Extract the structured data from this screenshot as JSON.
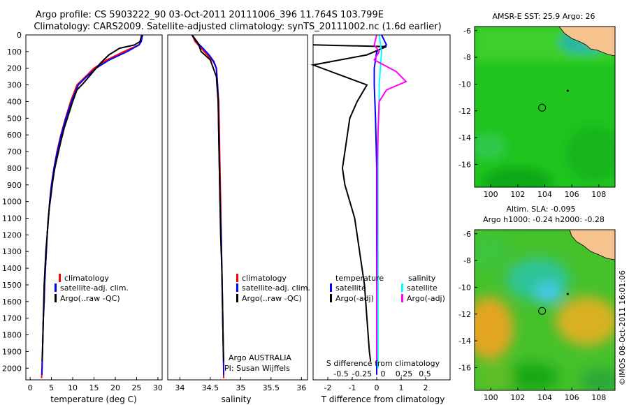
{
  "title": {
    "line1": "Argo profile: CS 5903222_90 03-Oct-2011 20111006_396 11.764S 103.799E",
    "line2": "Climatology: CARS2009. Satellite-adjusted climatology: synTS_20111002.nc (1.6d earlier)"
  },
  "chart_data": [
    {
      "id": "temperature",
      "type": "line",
      "xlabel": "temperature (deg C)",
      "xlim": [
        -1,
        31
      ],
      "ylim": [
        2070,
        0
      ],
      "xticks": [
        0,
        5,
        10,
        15,
        20,
        25,
        30
      ],
      "yticks": [
        0,
        100,
        200,
        300,
        400,
        500,
        600,
        700,
        800,
        900,
        1000,
        1100,
        1200,
        1300,
        1400,
        1500,
        1600,
        1700,
        1800,
        1900,
        2000
      ],
      "legend": [
        "climatology",
        "satellite-adj. clim.",
        "Argo(..raw -QC)"
      ],
      "legend_position": "lower-center",
      "series": [
        {
          "name": "climatology",
          "color": "#ff0000",
          "points": [
            [
              26.3,
              0
            ],
            [
              26.0,
              40
            ],
            [
              25.5,
              60
            ],
            [
              22.0,
              100
            ],
            [
              18.0,
              150
            ],
            [
              15.0,
              200
            ],
            [
              13.0,
              250
            ],
            [
              11.0,
              300
            ],
            [
              9.5,
              400
            ],
            [
              8.3,
              500
            ],
            [
              7.2,
              600
            ],
            [
              6.3,
              700
            ],
            [
              5.6,
              800
            ],
            [
              5.0,
              900
            ],
            [
              4.6,
              1000
            ],
            [
              4.3,
              1100
            ],
            [
              4.0,
              1200
            ],
            [
              3.8,
              1300
            ],
            [
              3.6,
              1400
            ],
            [
              3.4,
              1500
            ],
            [
              3.3,
              1600
            ],
            [
              3.1,
              1700
            ],
            [
              3.0,
              1800
            ],
            [
              2.9,
              1900
            ],
            [
              2.8,
              2000
            ],
            [
              2.7,
              2060
            ]
          ]
        },
        {
          "name": "satellite-adj. clim.",
          "color": "#0000ff",
          "points": [
            [
              26.4,
              0
            ],
            [
              26.1,
              40
            ],
            [
              25.6,
              60
            ],
            [
              22.8,
              100
            ],
            [
              18.6,
              150
            ],
            [
              15.5,
              200
            ],
            [
              13.3,
              250
            ],
            [
              11.3,
              300
            ],
            [
              9.7,
              400
            ],
            [
              8.4,
              500
            ],
            [
              7.3,
              600
            ],
            [
              6.4,
              700
            ],
            [
              5.6,
              800
            ],
            [
              5.0,
              900
            ],
            [
              4.6,
              1000
            ],
            [
              4.3,
              1100
            ],
            [
              4.0,
              1200
            ],
            [
              3.8,
              1300
            ],
            [
              3.6,
              1400
            ],
            [
              3.4,
              1500
            ],
            [
              3.3,
              1600
            ],
            [
              3.1,
              1700
            ],
            [
              3.0,
              1800
            ],
            [
              2.9,
              1900
            ],
            [
              2.8,
              2000
            ],
            [
              2.75,
              2040
            ]
          ]
        },
        {
          "name": "Argo(..raw -QC)",
          "color": "#000000",
          "points": [
            [
              26.2,
              0
            ],
            [
              25.8,
              40
            ],
            [
              24.5,
              60
            ],
            [
              21.0,
              80
            ],
            [
              18.5,
              120
            ],
            [
              16.5,
              170
            ],
            [
              14.5,
              230
            ],
            [
              12.5,
              290
            ],
            [
              11.0,
              330
            ],
            [
              10.0,
              400
            ],
            [
              9.0,
              480
            ],
            [
              8.0,
              560
            ],
            [
              7.2,
              640
            ],
            [
              6.5,
              720
            ],
            [
              5.8,
              800
            ],
            [
              5.3,
              880
            ],
            [
              4.9,
              960
            ],
            [
              4.5,
              1040
            ],
            [
              4.2,
              1120
            ],
            [
              4.0,
              1200
            ],
            [
              3.7,
              1300
            ],
            [
              3.5,
              1400
            ],
            [
              3.3,
              1500
            ],
            [
              3.2,
              1600
            ],
            [
              3.1,
              1700
            ],
            [
              3.0,
              1800
            ],
            [
              2.9,
              1900
            ],
            [
              2.8,
              1960
            ]
          ]
        }
      ]
    },
    {
      "id": "salinity",
      "type": "line",
      "xlabel": "salinity",
      "xlim": [
        33.8,
        36.1
      ],
      "ylim": [
        2070,
        0
      ],
      "xticks": [
        34,
        34.5,
        35,
        35.5,
        36
      ],
      "legend": [
        "climatology",
        "satellite-adj. clim.",
        "Argo(..raw -QC)"
      ],
      "legend_position": "lower-right",
      "annotation": {
        "line1": "Argo AUSTRALIA",
        "line2": "PI: Susan Wijffels"
      },
      "series": [
        {
          "name": "climatology",
          "color": "#ff0000",
          "points": [
            [
              34.2,
              0
            ],
            [
              34.25,
              40
            ],
            [
              34.35,
              80
            ],
            [
              34.45,
              120
            ],
            [
              34.55,
              160
            ],
            [
              34.6,
              200
            ],
            [
              34.62,
              300
            ],
            [
              34.64,
              400
            ],
            [
              34.65,
              600
            ],
            [
              34.66,
              800
            ],
            [
              34.67,
              1000
            ],
            [
              34.68,
              1200
            ],
            [
              34.69,
              1400
            ],
            [
              34.7,
              1600
            ],
            [
              34.71,
              1800
            ],
            [
              34.72,
              2000
            ],
            [
              34.72,
              2060
            ]
          ]
        },
        {
          "name": "satellite-adj. clim.",
          "color": "#0000ff",
          "points": [
            [
              34.2,
              0
            ],
            [
              34.27,
              40
            ],
            [
              34.38,
              80
            ],
            [
              34.48,
              120
            ],
            [
              34.56,
              160
            ],
            [
              34.6,
              200
            ],
            [
              34.62,
              300
            ],
            [
              34.63,
              400
            ],
            [
              34.64,
              600
            ],
            [
              34.65,
              800
            ],
            [
              34.66,
              1000
            ],
            [
              34.68,
              1200
            ],
            [
              34.69,
              1400
            ],
            [
              34.7,
              1600
            ],
            [
              34.71,
              1800
            ],
            [
              34.72,
              2000
            ],
            [
              34.72,
              2040
            ]
          ]
        },
        {
          "name": "Argo(..raw -QC)",
          "color": "#000000",
          "points": [
            [
              34.2,
              0
            ],
            [
              34.3,
              50
            ],
            [
              34.35,
              100
            ],
            [
              34.5,
              150
            ],
            [
              34.55,
              200
            ],
            [
              34.6,
              250
            ],
            [
              34.61,
              300
            ],
            [
              34.63,
              400
            ],
            [
              34.64,
              600
            ],
            [
              34.65,
              800
            ],
            [
              34.66,
              1000
            ],
            [
              34.67,
              1200
            ],
            [
              34.69,
              1400
            ],
            [
              34.7,
              1600
            ],
            [
              34.71,
              1800
            ],
            [
              34.72,
              1960
            ]
          ]
        }
      ]
    },
    {
      "id": "difference",
      "type": "line",
      "xlabel": "T difference from climatology",
      "xlabel_top": "S difference from climatology",
      "xlim": [
        -2.6,
        3.0
      ],
      "ylim": [
        2070,
        0
      ],
      "xticks": [
        -2,
        -1,
        0,
        1,
        2
      ],
      "xticks_top": [
        "-0.5",
        "-0.25",
        "0",
        "0.25",
        "0.5"
      ],
      "legend_headers": [
        "temperature",
        "salinity"
      ],
      "legend": [
        "satellite",
        "Argo(-adj)",
        "satellite",
        "Argo(-adj)"
      ],
      "legend_position": "lower-center",
      "series": [
        {
          "name": "temperature satellite",
          "color": "#0000ff",
          "points": [
            [
              0.2,
              0
            ],
            [
              0.4,
              60
            ],
            [
              0.0,
              100
            ],
            [
              -0.1,
              200
            ],
            [
              -0.1,
              300
            ],
            [
              -0.05,
              500
            ],
            [
              0.0,
              800
            ],
            [
              0.0,
              1200
            ],
            [
              0.0,
              1600
            ],
            [
              0.0,
              2000
            ],
            [
              0.0,
              2040
            ]
          ]
        },
        {
          "name": "temperature Argo(-adj)",
          "color": "#000000",
          "points": [
            [
              -2.6,
              60
            ],
            [
              0.4,
              70
            ],
            [
              -0.4,
              120
            ],
            [
              -2.6,
              180
            ],
            [
              -0.4,
              300
            ],
            [
              -0.8,
              400
            ],
            [
              -1.1,
              500
            ],
            [
              -1.2,
              600
            ],
            [
              -1.3,
              700
            ],
            [
              -1.4,
              800
            ],
            [
              -1.3,
              900
            ],
            [
              -1.1,
              1000
            ],
            [
              -0.9,
              1100
            ],
            [
              -0.7,
              1300
            ],
            [
              -0.5,
              1500
            ],
            [
              -0.4,
              1700
            ],
            [
              -0.3,
              1900
            ],
            [
              -0.25,
              1960
            ]
          ]
        },
        {
          "name": "salinity satellite",
          "color": "#00ffff",
          "points": [
            [
              0.1,
              0
            ],
            [
              0.2,
              100
            ],
            [
              0.15,
              200
            ],
            [
              0.1,
              300
            ],
            [
              0.1,
              400
            ],
            [
              0.05,
              600
            ],
            [
              0.05,
              800
            ],
            [
              0.05,
              1000
            ],
            [
              0.05,
              1200
            ],
            [
              0.05,
              1400
            ],
            [
              0.05,
              1600
            ],
            [
              0.05,
              1800
            ],
            [
              0.05,
              2000
            ]
          ]
        },
        {
          "name": "salinity Argo(-adj)",
          "color": "#ff00ff",
          "points": [
            [
              0.0,
              0
            ],
            [
              -0.1,
              60
            ],
            [
              0.1,
              100
            ],
            [
              -0.1,
              150
            ],
            [
              0.8,
              220
            ],
            [
              1.2,
              280
            ],
            [
              0.4,
              330
            ],
            [
              0.1,
              400
            ],
            [
              0.05,
              600
            ],
            [
              0.02,
              800
            ],
            [
              0.02,
              1200
            ],
            [
              0.0,
              1600
            ],
            [
              0.0,
              1960
            ]
          ]
        }
      ]
    },
    {
      "id": "sst-map",
      "type": "heatmap",
      "title": "AMSR-E SST: 25.9 Argo: 26",
      "xlim": [
        98.8,
        109.2
      ],
      "ylim": [
        -17.7,
        -5.7
      ],
      "xticks": [
        100,
        102,
        104,
        106,
        108
      ],
      "yticks": [
        -6,
        -8,
        -10,
        -12,
        -14,
        -16
      ],
      "argo_position": {
        "lon": 103.799,
        "lat": -11.764
      },
      "marker_position": {
        "lon": 105.7,
        "lat": -10.5
      }
    },
    {
      "id": "sla-map",
      "type": "heatmap",
      "title_line1": "Altim. SLA: -0.095",
      "title_line2": "Argo h1000: -0.24 h2000: -0.28",
      "xlim": [
        98.8,
        109.2
      ],
      "ylim": [
        -17.7,
        -5.7
      ],
      "xticks": [
        100,
        102,
        104,
        106,
        108
      ],
      "yticks": [
        -6,
        -8,
        -10,
        -12,
        -14,
        -16
      ],
      "argo_position": {
        "lon": 103.799,
        "lat": -11.764
      },
      "marker_position": {
        "lon": 105.7,
        "lat": -10.5
      }
    }
  ],
  "footer": "©IMOS 08-Oct-2011 16:01:06"
}
